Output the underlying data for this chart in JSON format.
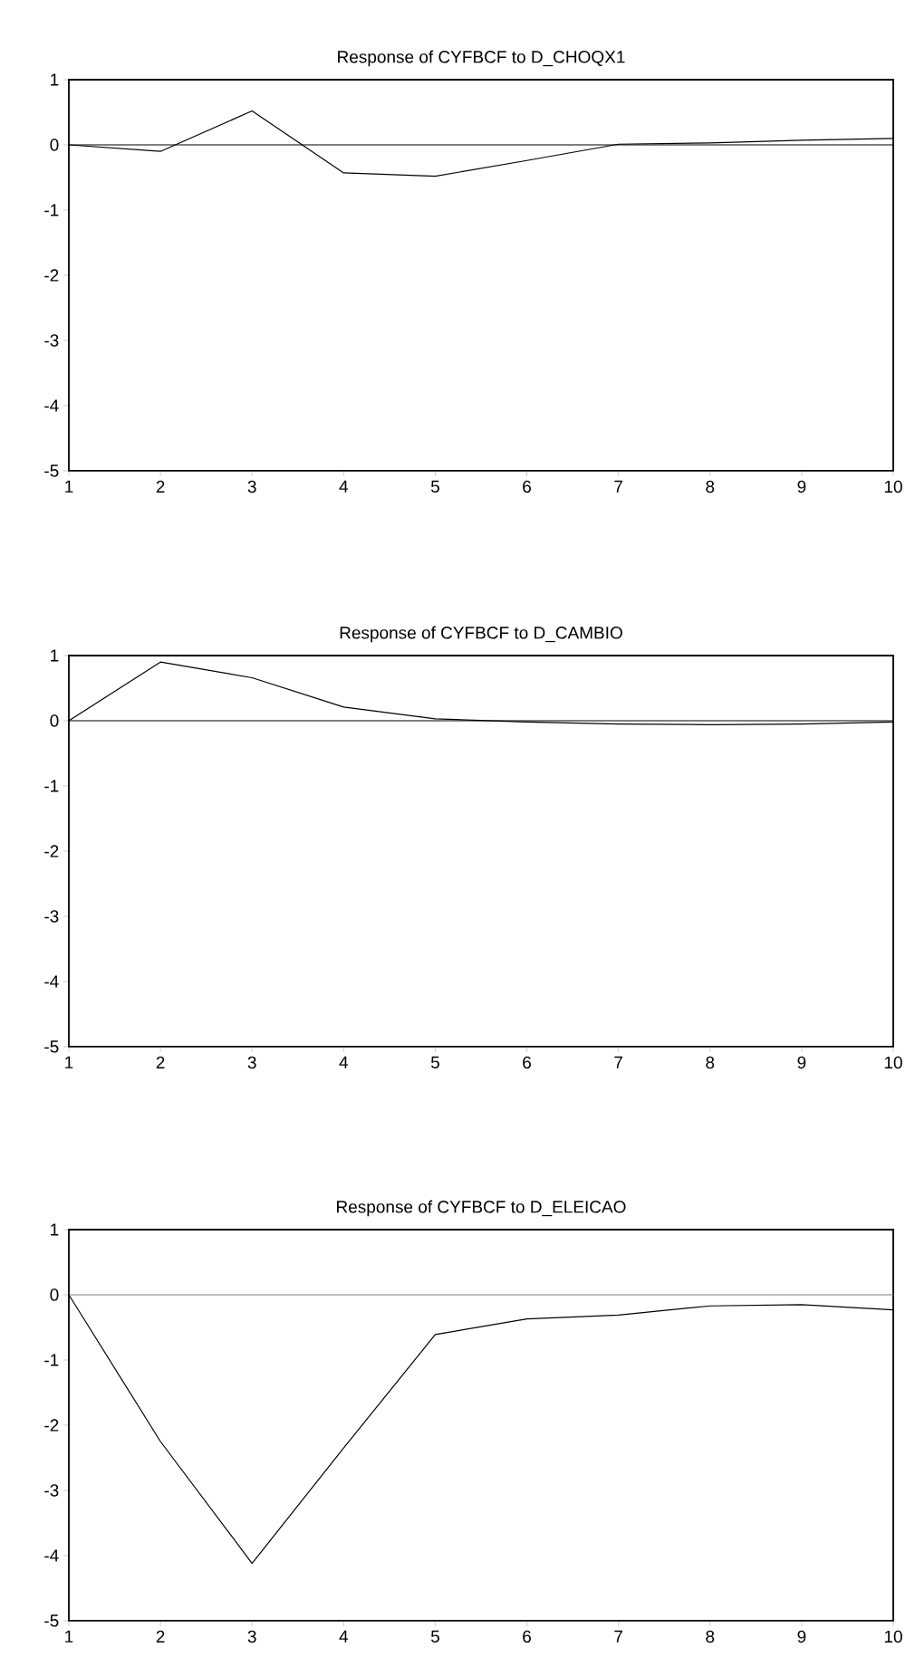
{
  "chart_data": [
    {
      "type": "line",
      "title": "Response of CYFBCF to D_CHOQX1",
      "x": [
        1,
        2,
        3,
        4,
        5,
        6,
        7,
        8,
        9,
        10
      ],
      "series": [
        {
          "color": "#000000",
          "values": [
            0,
            -0.1,
            0.52,
            -0.43,
            -0.48,
            -0.24,
            0.01,
            0.03,
            0.07,
            0.1
          ]
        }
      ],
      "xlim": [
        1,
        10
      ],
      "ylim": [
        -5,
        1
      ],
      "xticks": [
        1,
        2,
        3,
        4,
        5,
        6,
        7,
        8,
        9,
        10
      ],
      "yticks": [
        -5,
        -4,
        -3,
        -2,
        -1,
        0,
        1
      ],
      "ref_lines": [
        {
          "axis": "y",
          "value": 0,
          "color": "#000000"
        }
      ],
      "grid": false,
      "legend": false,
      "marker": "none",
      "line_style": "solid"
    },
    {
      "type": "line",
      "title": "Response of CYFBCF to D_CAMBIO",
      "x": [
        1,
        2,
        3,
        4,
        5,
        6,
        7,
        8,
        9,
        10
      ],
      "series": [
        {
          "color": "#000000",
          "values": [
            0,
            0.9,
            0.66,
            0.21,
            0.03,
            -0.02,
            -0.05,
            -0.06,
            -0.05,
            -0.02
          ]
        }
      ],
      "xlim": [
        1,
        10
      ],
      "ylim": [
        -5,
        1
      ],
      "xticks": [
        1,
        2,
        3,
        4,
        5,
        6,
        7,
        8,
        9,
        10
      ],
      "yticks": [
        -5,
        -4,
        -3,
        -2,
        -1,
        0,
        1
      ],
      "ref_lines": [
        {
          "axis": "y",
          "value": 0,
          "color": "#000000"
        }
      ],
      "grid": false,
      "legend": false,
      "marker": "none",
      "line_style": "solid"
    },
    {
      "type": "line",
      "title": "Response of CYFBCF to D_ELEICAO",
      "x": [
        1,
        2,
        3,
        4,
        5,
        6,
        7,
        8,
        9,
        10
      ],
      "series": [
        {
          "color": "#000000",
          "values": [
            0,
            -2.25,
            -4.12,
            -2.35,
            -0.61,
            -0.37,
            -0.31,
            -0.17,
            -0.15,
            -0.23
          ]
        }
      ],
      "xlim": [
        1,
        10
      ],
      "ylim": [
        -5,
        1
      ],
      "xticks": [
        1,
        2,
        3,
        4,
        5,
        6,
        7,
        8,
        9,
        10
      ],
      "yticks": [
        -5,
        -4,
        -3,
        -2,
        -1,
        0,
        1
      ],
      "ref_lines": [
        {
          "axis": "y",
          "value": 0,
          "color": "#808080"
        }
      ],
      "grid": false,
      "legend": false,
      "marker": "none",
      "line_style": "solid"
    }
  ]
}
